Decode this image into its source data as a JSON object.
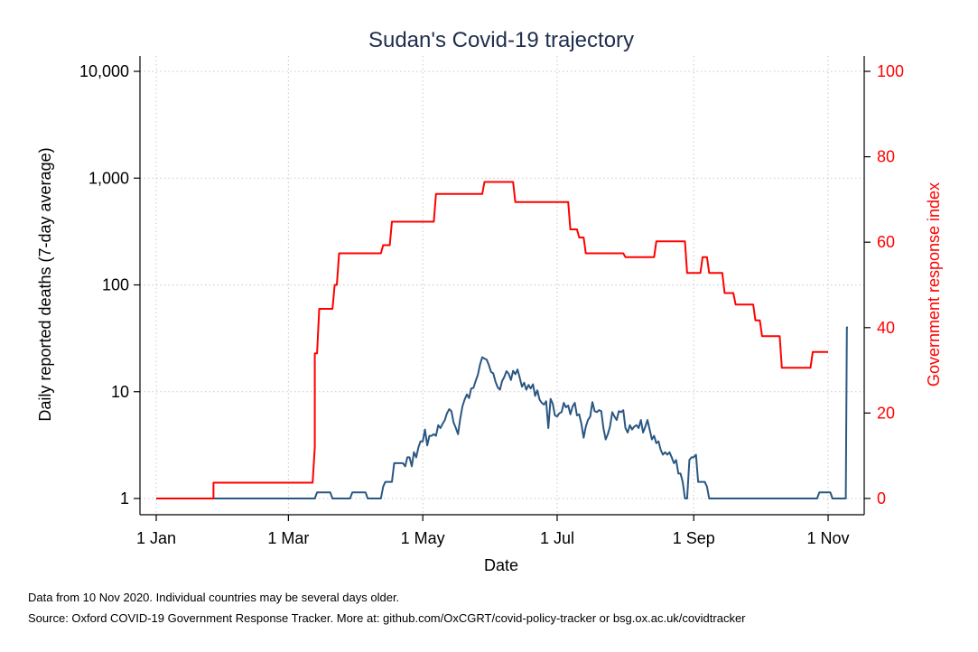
{
  "chart_data": {
    "type": "line",
    "title": "Sudan's Covid-19 trajectory",
    "xlabel": "Date",
    "ylabel_left": "Daily reported deaths (7-day average)",
    "ylabel_right": "Government response index",
    "y_left_scale": "log",
    "y_left_range": [
      1,
      10000
    ],
    "y_left_ticks": [
      {
        "value": 1,
        "label": "1"
      },
      {
        "value": 10,
        "label": "10"
      },
      {
        "value": 100,
        "label": "100"
      },
      {
        "value": 1000,
        "label": "1,000"
      },
      {
        "value": 10000,
        "label": "10,000"
      }
    ],
    "y_right_range": [
      0,
      100
    ],
    "y_right_ticks": [
      {
        "value": 0,
        "label": "0"
      },
      {
        "value": 20,
        "label": "20"
      },
      {
        "value": 40,
        "label": "40"
      },
      {
        "value": 60,
        "label": "60"
      },
      {
        "value": 80,
        "label": "80"
      },
      {
        "value": 100,
        "label": "100"
      }
    ],
    "x_range_days": [
      0,
      314
    ],
    "x_ticks": [
      {
        "day": 0,
        "label": "1 Jan"
      },
      {
        "day": 60,
        "label": "1 Mar"
      },
      {
        "day": 121,
        "label": "1 May"
      },
      {
        "day": 182,
        "label": "1 Jul"
      },
      {
        "day": 244,
        "label": "1 Sep"
      },
      {
        "day": 305,
        "label": "1 Nov"
      }
    ],
    "grid": true,
    "series": [
      {
        "name": "Daily reported deaths (7-day average)",
        "axis": "left",
        "color": "#2a5783",
        "points": [
          [
            0,
            1
          ],
          [
            72,
            1
          ],
          [
            73,
            1.14
          ],
          [
            79,
            1.14
          ],
          [
            80,
            1
          ],
          [
            88,
            1
          ],
          [
            89,
            1.14
          ],
          [
            95,
            1.14
          ],
          [
            96,
            1
          ],
          [
            102,
            1
          ],
          [
            103,
            1.29
          ],
          [
            104,
            1.43
          ],
          [
            107,
            1.43
          ],
          [
            108,
            2.14
          ],
          [
            112,
            2.14
          ],
          [
            113,
            2
          ],
          [
            114,
            2.43
          ],
          [
            115,
            2.43
          ],
          [
            116,
            2
          ],
          [
            117,
            2.71
          ],
          [
            118,
            2.43
          ],
          [
            119,
            3
          ],
          [
            120,
            3.43
          ],
          [
            121,
            3.43
          ],
          [
            122,
            4.43
          ],
          [
            123,
            3.14
          ],
          [
            124,
            3.86
          ],
          [
            125,
            3.86
          ],
          [
            126,
            4
          ],
          [
            127,
            3.86
          ],
          [
            128,
            4.86
          ],
          [
            129,
            4.57
          ],
          [
            130,
            5
          ],
          [
            131,
            5.43
          ],
          [
            132,
            6.29
          ],
          [
            133,
            6.86
          ],
          [
            134,
            6.57
          ],
          [
            135,
            5.14
          ],
          [
            136,
            4.57
          ],
          [
            137,
            4
          ],
          [
            138,
            5.57
          ],
          [
            139,
            7.29
          ],
          [
            140,
            8.43
          ],
          [
            141,
            9.43
          ],
          [
            142,
            8.71
          ],
          [
            143,
            10.71
          ],
          [
            144,
            10.86
          ],
          [
            145,
            12.57
          ],
          [
            146,
            14.43
          ],
          [
            147,
            18
          ],
          [
            148,
            21
          ],
          [
            149,
            20.43
          ],
          [
            150,
            20
          ],
          [
            151,
            17.71
          ],
          [
            152,
            15.29
          ],
          [
            153,
            14.86
          ],
          [
            154,
            12.43
          ],
          [
            155,
            11
          ],
          [
            156,
            10.43
          ],
          [
            157,
            12.57
          ],
          [
            158,
            13.71
          ],
          [
            159,
            15.57
          ],
          [
            160,
            14.71
          ],
          [
            161,
            12.86
          ],
          [
            162,
            15.71
          ],
          [
            163,
            14.57
          ],
          [
            164,
            16.14
          ],
          [
            165,
            13.57
          ],
          [
            166,
            11.14
          ],
          [
            167,
            12.14
          ],
          [
            168,
            10.43
          ],
          [
            169,
            11.57
          ],
          [
            170,
            10.71
          ],
          [
            171,
            11.71
          ],
          [
            172,
            9.14
          ],
          [
            173,
            10.29
          ],
          [
            174,
            8.43
          ],
          [
            175,
            7.86
          ],
          [
            176,
            7.57
          ],
          [
            177,
            8.14
          ],
          [
            178,
            4.57
          ],
          [
            179,
            8.57
          ],
          [
            180,
            7.71
          ],
          [
            181,
            6
          ],
          [
            182,
            5.86
          ],
          [
            183,
            6.29
          ],
          [
            184,
            6.43
          ],
          [
            185,
            7.86
          ],
          [
            186,
            7.14
          ],
          [
            187,
            7.43
          ],
          [
            188,
            6.14
          ],
          [
            189,
            7.29
          ],
          [
            190,
            7.86
          ],
          [
            191,
            6
          ],
          [
            192,
            6.14
          ],
          [
            193,
            5
          ],
          [
            194,
            3.71
          ],
          [
            195,
            4.71
          ],
          [
            196,
            5.43
          ],
          [
            197,
            5.86
          ],
          [
            198,
            8
          ],
          [
            199,
            6.57
          ],
          [
            200,
            6.43
          ],
          [
            201,
            6.71
          ],
          [
            202,
            6.57
          ],
          [
            203,
            4.57
          ],
          [
            204,
            3.57
          ],
          [
            205,
            4
          ],
          [
            206,
            4.71
          ],
          [
            207,
            6.43
          ],
          [
            208,
            5.86
          ],
          [
            209,
            5.43
          ],
          [
            210,
            6.57
          ],
          [
            211,
            6.43
          ],
          [
            212,
            6.71
          ],
          [
            213,
            4.57
          ],
          [
            214,
            4.14
          ],
          [
            215,
            4.86
          ],
          [
            216,
            4.43
          ],
          [
            217,
            4.71
          ],
          [
            218,
            4.86
          ],
          [
            219,
            4.57
          ],
          [
            220,
            5.43
          ],
          [
            221,
            4.14
          ],
          [
            222,
            4.71
          ],
          [
            223,
            5.43
          ],
          [
            224,
            4.43
          ],
          [
            225,
            3.57
          ],
          [
            226,
            3.86
          ],
          [
            227,
            3.29
          ],
          [
            228,
            3.43
          ],
          [
            229,
            2.86
          ],
          [
            230,
            2.57
          ],
          [
            231,
            2.71
          ],
          [
            232,
            2.57
          ],
          [
            233,
            2.71
          ],
          [
            234,
            2.43
          ],
          [
            235,
            2.14
          ],
          [
            236,
            2.29
          ],
          [
            237,
            1.71
          ],
          [
            238,
            1.71
          ],
          [
            239,
            1.43
          ],
          [
            240,
            1
          ],
          [
            241,
            1
          ],
          [
            242,
            2.29
          ],
          [
            243,
            2.43
          ],
          [
            244,
            2.43
          ],
          [
            245,
            2.57
          ],
          [
            246,
            1.43
          ],
          [
            249,
            1.43
          ],
          [
            250,
            1.29
          ],
          [
            251,
            1
          ],
          [
            300,
            1
          ],
          [
            301,
            1.14
          ],
          [
            306,
            1.14
          ],
          [
            307,
            1
          ],
          [
            313,
            1
          ],
          [
            313.5,
            40
          ],
          [
            314,
            40
          ]
        ]
      },
      {
        "name": "Government response index",
        "axis": "right",
        "color": "#ff0000",
        "points": [
          [
            0,
            0
          ],
          [
            26,
            0
          ],
          [
            26,
            3.7
          ],
          [
            71,
            3.7
          ],
          [
            72,
            12
          ],
          [
            72,
            34
          ],
          [
            73,
            34
          ],
          [
            74,
            44.4
          ],
          [
            80,
            44.4
          ],
          [
            81,
            50
          ],
          [
            82,
            50
          ],
          [
            83,
            57.4
          ],
          [
            102,
            57.4
          ],
          [
            103,
            59.3
          ],
          [
            106,
            59.3
          ],
          [
            107,
            64.8
          ],
          [
            126,
            64.8
          ],
          [
            127,
            71.3
          ],
          [
            148,
            71.3
          ],
          [
            149,
            74.1
          ],
          [
            162,
            74.1
          ],
          [
            163,
            69.4
          ],
          [
            187,
            69.4
          ],
          [
            188,
            63
          ],
          [
            191,
            63
          ],
          [
            192,
            61.1
          ],
          [
            194,
            61.1
          ],
          [
            195,
            57.4
          ],
          [
            212,
            57.4
          ],
          [
            213,
            56.5
          ],
          [
            226,
            56.5
          ],
          [
            227,
            60.2
          ],
          [
            240,
            60.2
          ],
          [
            241,
            52.8
          ],
          [
            247,
            52.8
          ],
          [
            248,
            56.5
          ],
          [
            250,
            56.5
          ],
          [
            251,
            52.8
          ],
          [
            257,
            52.8
          ],
          [
            258,
            48.1
          ],
          [
            262,
            48.1
          ],
          [
            263,
            45.4
          ],
          [
            271,
            45.4
          ],
          [
            272,
            41.7
          ],
          [
            274,
            41.7
          ],
          [
            275,
            38
          ],
          [
            283,
            38
          ],
          [
            284,
            30.6
          ],
          [
            297,
            30.6
          ],
          [
            298,
            34.3
          ],
          [
            305,
            34.3
          ]
        ]
      }
    ]
  },
  "footnotes": {
    "line1": "Data from 10 Nov 2020. Individual countries may be several days older.",
    "line2": "Source: Oxford COVID-19 Government Response Tracker. More at: github.com/OxCGRT/covid-policy-tracker or bsg.ox.ac.uk/covidtracker"
  },
  "colors": {
    "left_axis": "#000000",
    "right_axis": "#ff0000",
    "grid": "#c8c8c8",
    "title": "#1f2e4d"
  }
}
